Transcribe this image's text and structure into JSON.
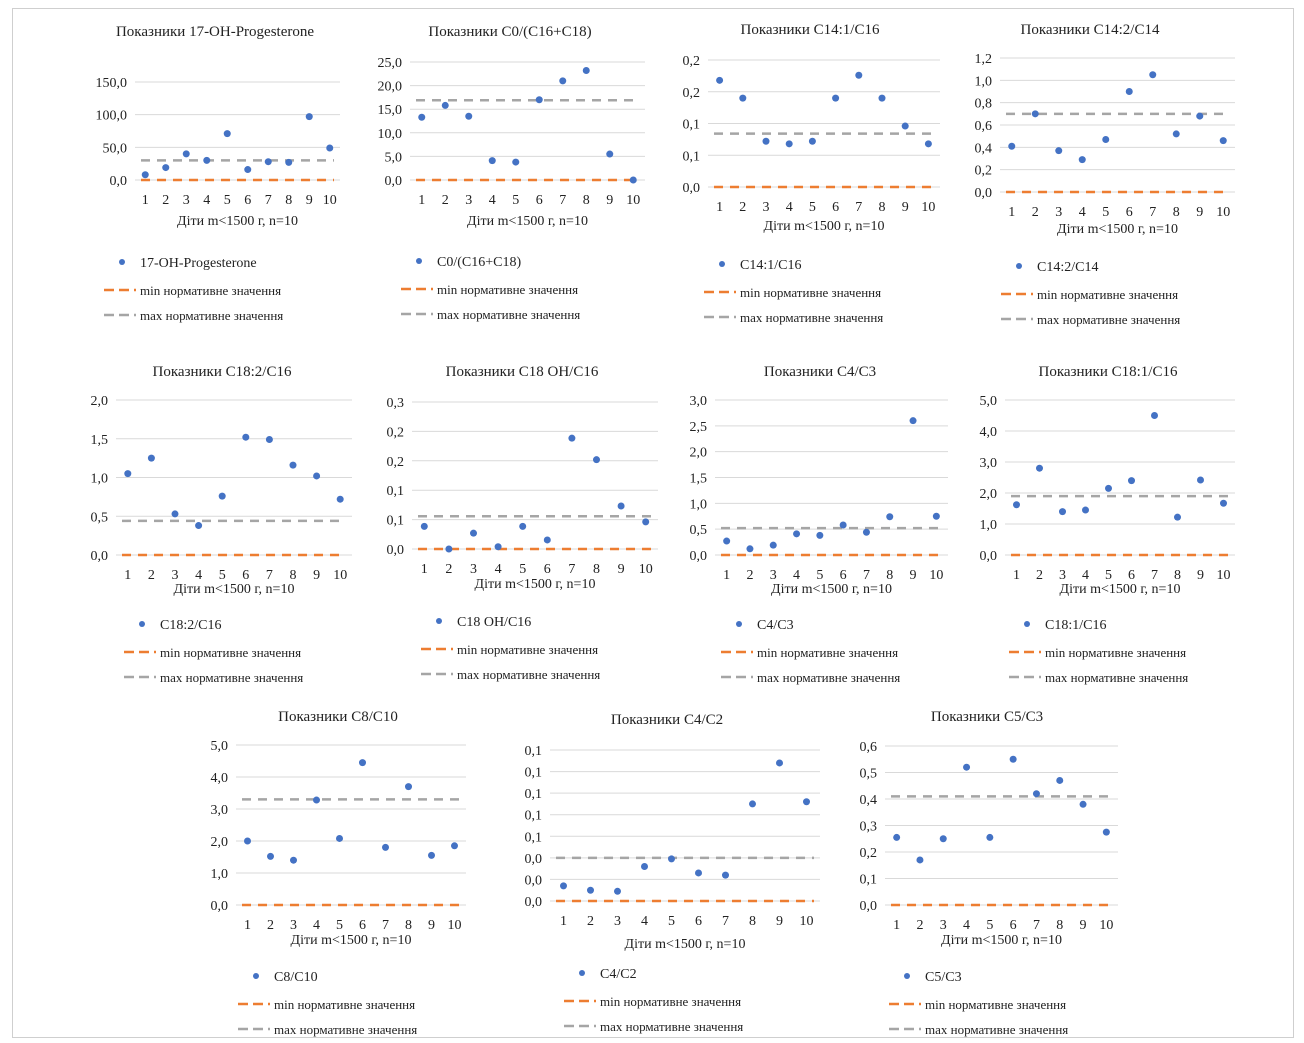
{
  "common": {
    "xlabel": "Діти m<1500 г, n=10",
    "legend_min": "min нормативне значення",
    "legend_max": "max нормативне значення"
  },
  "colors": {
    "points": "#4472C4",
    "min_line": "#ED7D31",
    "max_line": "#A5A5A5",
    "grid": "#D9D9D9"
  },
  "chart_data": [
    {
      "type": "scatter",
      "title": "Показники 17-ОН-Progesterone",
      "x": [
        1,
        2,
        3,
        4,
        5,
        6,
        7,
        8,
        9,
        10
      ],
      "series": [
        {
          "name": "17-OH-Progesterone",
          "values": [
            8,
            19,
            40,
            30,
            71,
            16,
            28,
            27,
            97,
            49
          ]
        }
      ],
      "min_norm": 0,
      "max_norm": 30,
      "ylim": [
        0,
        150
      ],
      "yticks": [
        "0,0",
        "50,0",
        "100,0",
        "150,0"
      ],
      "legend": "bottom"
    },
    {
      "type": "scatter",
      "title": "Показники C0/(C16+C18)",
      "x": [
        1,
        2,
        3,
        4,
        5,
        6,
        7,
        8,
        9,
        10
      ],
      "series": [
        {
          "name": "C0/(C16+C18)",
          "values": [
            13.3,
            15.8,
            13.5,
            4.1,
            3.8,
            17.0,
            21.0,
            23.2,
            5.5,
            0
          ]
        }
      ],
      "min_norm": 0,
      "max_norm": 16.9,
      "ylim": [
        0,
        25
      ],
      "yticks": [
        "0,0",
        "5,0",
        "10,0",
        "15,0",
        "20,0",
        "25,0"
      ],
      "legend": "bottom"
    },
    {
      "type": "scatter",
      "title": "Показники C14:1/C16",
      "x": [
        1,
        2,
        3,
        4,
        5,
        6,
        7,
        8,
        9,
        10
      ],
      "series": [
        {
          "name": "C14:1/C16",
          "values": [
            0.21,
            0.175,
            0.09,
            0.085,
            0.09,
            0.175,
            0.22,
            0.175,
            0.12,
            0.085
          ]
        }
      ],
      "min_norm": 0,
      "max_norm": 0.105,
      "ylim": [
        0,
        0.25
      ],
      "yticks": [
        "0,0",
        "0,1",
        "0,1",
        "0,2",
        "0,2"
      ],
      "legend": "bottom"
    },
    {
      "type": "scatter",
      "title": "Показники C14:2/C14",
      "x": [
        1,
        2,
        3,
        4,
        5,
        6,
        7,
        8,
        9,
        10
      ],
      "series": [
        {
          "name": "C14:2/C14",
          "values": [
            0.41,
            0.7,
            0.37,
            0.29,
            0.47,
            0.9,
            1.05,
            0.52,
            0.68,
            0.46
          ]
        }
      ],
      "min_norm": 0,
      "max_norm": 0.7,
      "ylim": [
        0,
        1.2
      ],
      "yticks": [
        "0,0",
        "0,2",
        "0,4",
        "0,6",
        "0,8",
        "1,0",
        "1,2"
      ],
      "legend": "bottom"
    },
    {
      "type": "scatter",
      "title": "Показники C18:2/C16",
      "x": [
        1,
        2,
        3,
        4,
        5,
        6,
        7,
        8,
        9,
        10
      ],
      "series": [
        {
          "name": "C18:2/C16",
          "values": [
            1.05,
            1.25,
            0.53,
            0.38,
            0.76,
            1.52,
            1.49,
            1.16,
            1.02,
            0.72
          ]
        }
      ],
      "min_norm": 0,
      "max_norm": 0.44,
      "ylim": [
        0,
        2.0
      ],
      "yticks": [
        "0,0",
        "0,5",
        "1,0",
        "1,5",
        "2,0"
      ],
      "legend": "bottom"
    },
    {
      "type": "scatter",
      "title": "Показники C18 OH/C16",
      "x": [
        1,
        2,
        3,
        4,
        5,
        6,
        7,
        8,
        9,
        10
      ],
      "series": [
        {
          "name": "C18 OH/C16",
          "values": [
            0.04,
            0.0,
            0.028,
            0.004,
            0.04,
            0.016,
            0.196,
            0.158,
            0.076,
            0.048
          ]
        }
      ],
      "min_norm": 0,
      "max_norm": 0.058,
      "ylim": [
        0,
        0.26
      ],
      "yticks": [
        "0,0",
        "0,1",
        "0,1",
        "0,2",
        "0,2",
        "0,3"
      ],
      "legend": "bottom"
    },
    {
      "type": "scatter",
      "title": "Показники C4/C3",
      "x": [
        1,
        2,
        3,
        4,
        5,
        6,
        7,
        8,
        9,
        10
      ],
      "series": [
        {
          "name": "C4/C3",
          "values": [
            0.27,
            0.12,
            0.19,
            0.41,
            0.38,
            0.58,
            0.44,
            0.74,
            2.6,
            0.75
          ]
        }
      ],
      "min_norm": 0,
      "max_norm": 0.52,
      "ylim": [
        0,
        3.0
      ],
      "yticks": [
        "0,0",
        "0,5",
        "1,0",
        "1,5",
        "2,0",
        "2,5",
        "3,0"
      ],
      "legend": "bottom"
    },
    {
      "type": "scatter",
      "title": "Показники C18:1/C16",
      "x": [
        1,
        2,
        3,
        4,
        5,
        6,
        7,
        8,
        9,
        10
      ],
      "series": [
        {
          "name": "C18:1/C16",
          "values": [
            1.62,
            2.8,
            1.4,
            1.45,
            2.15,
            2.4,
            4.5,
            1.22,
            2.42,
            1.67
          ]
        }
      ],
      "min_norm": 0,
      "max_norm": 1.9,
      "ylim": [
        0,
        5.0
      ],
      "yticks": [
        "0,0",
        "1,0",
        "2,0",
        "3,0",
        "4,0",
        "5,0"
      ],
      "legend": "bottom"
    },
    {
      "type": "scatter",
      "title": "Показники C8/C10",
      "x": [
        1,
        2,
        3,
        4,
        5,
        6,
        7,
        8,
        9,
        10
      ],
      "series": [
        {
          "name": "C8/C10",
          "values": [
            2.0,
            1.52,
            1.4,
            3.28,
            2.08,
            4.45,
            1.8,
            3.7,
            1.55,
            1.85
          ]
        }
      ],
      "min_norm": 0,
      "max_norm": 3.3,
      "ylim": [
        0,
        5.0
      ],
      "yticks": [
        "0,0",
        "1,0",
        "2,0",
        "3,0",
        "4,0",
        "5,0"
      ],
      "legend": "bottom"
    },
    {
      "type": "scatter",
      "title": "Показники C4/C2",
      "x": [
        1,
        2,
        3,
        4,
        5,
        6,
        7,
        8,
        9,
        10
      ],
      "series": [
        {
          "name": "C4/C2",
          "values": [
            0.007,
            0.005,
            0.0045,
            0.016,
            0.0195,
            0.013,
            0.012,
            0.045,
            0.064,
            0.046
          ]
        }
      ],
      "min_norm": 0,
      "max_norm": 0.02,
      "ylim": [
        0,
        0.07
      ],
      "yticks": [
        "0,0",
        "0,0",
        "0,0",
        "0,1",
        "0,1",
        "0,1",
        "0,1",
        "0,1"
      ],
      "legend": "bottom"
    },
    {
      "type": "scatter",
      "title": "Показники C5/C3",
      "x": [
        1,
        2,
        3,
        4,
        5,
        6,
        7,
        8,
        9,
        10
      ],
      "series": [
        {
          "name": "C5/C3",
          "values": [
            0.255,
            0.17,
            0.25,
            0.52,
            0.255,
            0.55,
            0.42,
            0.47,
            0.38,
            0.275
          ]
        }
      ],
      "min_norm": 0,
      "max_norm": 0.41,
      "ylim": [
        0,
        0.6
      ],
      "yticks": [
        "0,0",
        "0,1",
        "0,2",
        "0,3",
        "0,4",
        "0,5",
        "0,6"
      ],
      "legend": "bottom"
    }
  ]
}
